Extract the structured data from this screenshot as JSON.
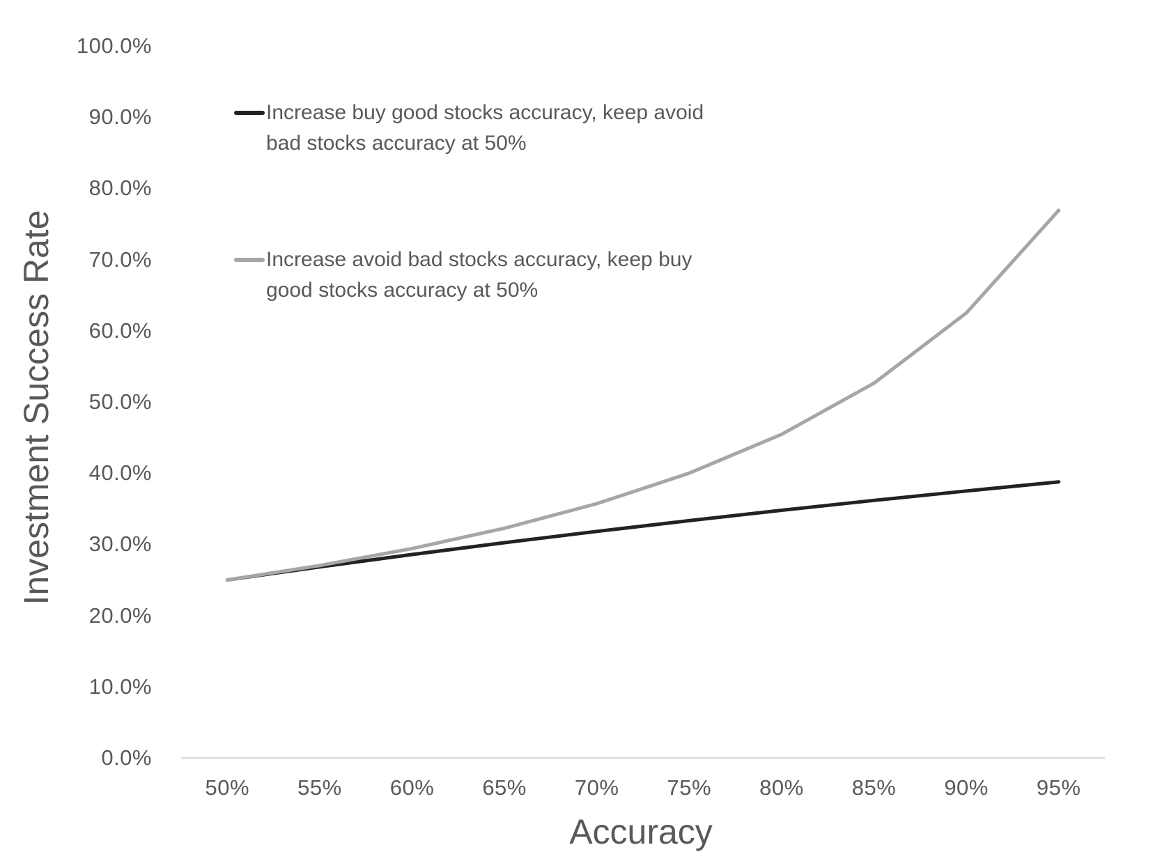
{
  "chart_data": {
    "type": "line",
    "title": "",
    "xlabel": "Accuracy",
    "ylabel": "Investment Success Rate",
    "x_categories": [
      "50%",
      "55%",
      "60%",
      "65%",
      "70%",
      "75%",
      "80%",
      "85%",
      "90%",
      "95%"
    ],
    "y_ticks": [
      "0.0%",
      "10.0%",
      "20.0%",
      "30.0%",
      "40.0%",
      "50.0%",
      "60.0%",
      "70.0%",
      "80.0%",
      "90.0%",
      "100.0%"
    ],
    "ylim": [
      0,
      100
    ],
    "grid": "off",
    "legend_position": "inside-top-left",
    "series": [
      {
        "name": "Increase buy good stocks accuracy, keep avoid bad stocks accuracy at 50%",
        "legend_lines": [
          "Increase buy good stocks accuracy, keep avoid",
          "bad stocks accuracy at 50%"
        ],
        "color": "#222222",
        "values_pct": [
          25.0,
          26.83,
          28.57,
          30.23,
          31.82,
          33.33,
          34.78,
          36.17,
          37.5,
          38.78
        ]
      },
      {
        "name": "Increase avoid bad stocks accuracy, keep buy good stocks accuracy at 50%",
        "legend_lines": [
          "Increase avoid bad stocks accuracy, keep buy",
          "good stocks accuracy at 50%"
        ],
        "color": "#a6a6a6",
        "values_pct": [
          25.0,
          27.03,
          29.41,
          32.26,
          35.71,
          40.0,
          45.45,
          52.63,
          62.5,
          76.92
        ]
      }
    ],
    "axis_color": "#d9d9d9",
    "text_color": "#595959",
    "background": "#ffffff"
  }
}
